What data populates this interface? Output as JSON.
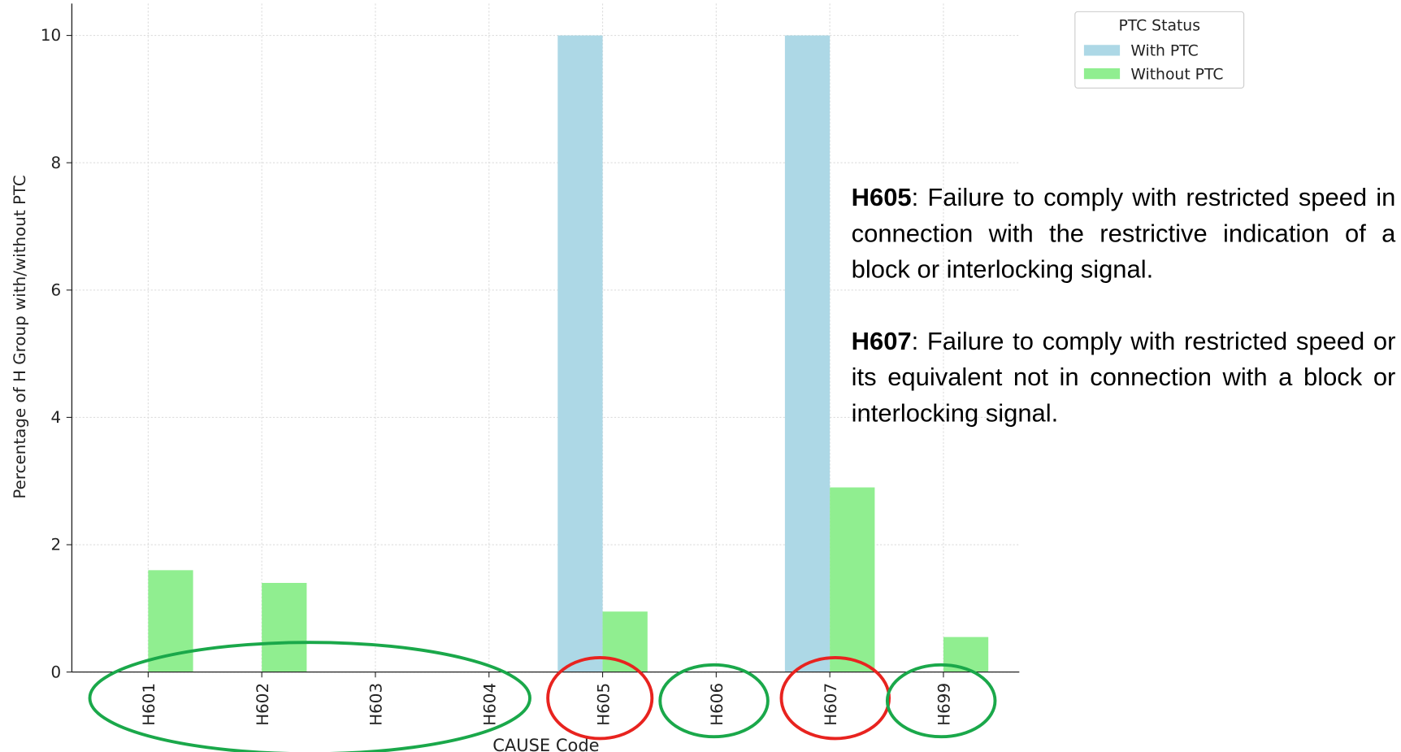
{
  "chart_data": {
    "type": "bar",
    "xlabel": "CAUSE Code",
    "ylabel": "Percentage of H Group with/without PTC",
    "categories": [
      "H601",
      "H602",
      "H603",
      "H604",
      "H605",
      "H606",
      "H607",
      "H699"
    ],
    "series": [
      {
        "name": "With PTC",
        "color": "#add8e6",
        "values": [
          0,
          0,
          0,
          0,
          10,
          0,
          10,
          0
        ]
      },
      {
        "name": "Without PTC",
        "color": "#90ee90",
        "values": [
          1.6,
          1.4,
          0,
          0,
          0.95,
          0,
          2.9,
          0.55
        ]
      }
    ],
    "ylim": [
      0,
      10.5
    ],
    "yticks": [
      0,
      2,
      4,
      6,
      8,
      10
    ],
    "grid": true,
    "legend": "upper right",
    "legend_title": "PTC Status",
    "annotations": [
      {
        "code": "H605",
        "text": ": Failure to comply with restricted speed in connection with the restrictive indication of a block or interlocking signal."
      },
      {
        "code": "H607",
        "text": ": Failure to comply with restricted speed or its equivalent not in connection with a block or interlocking signal."
      }
    ]
  }
}
